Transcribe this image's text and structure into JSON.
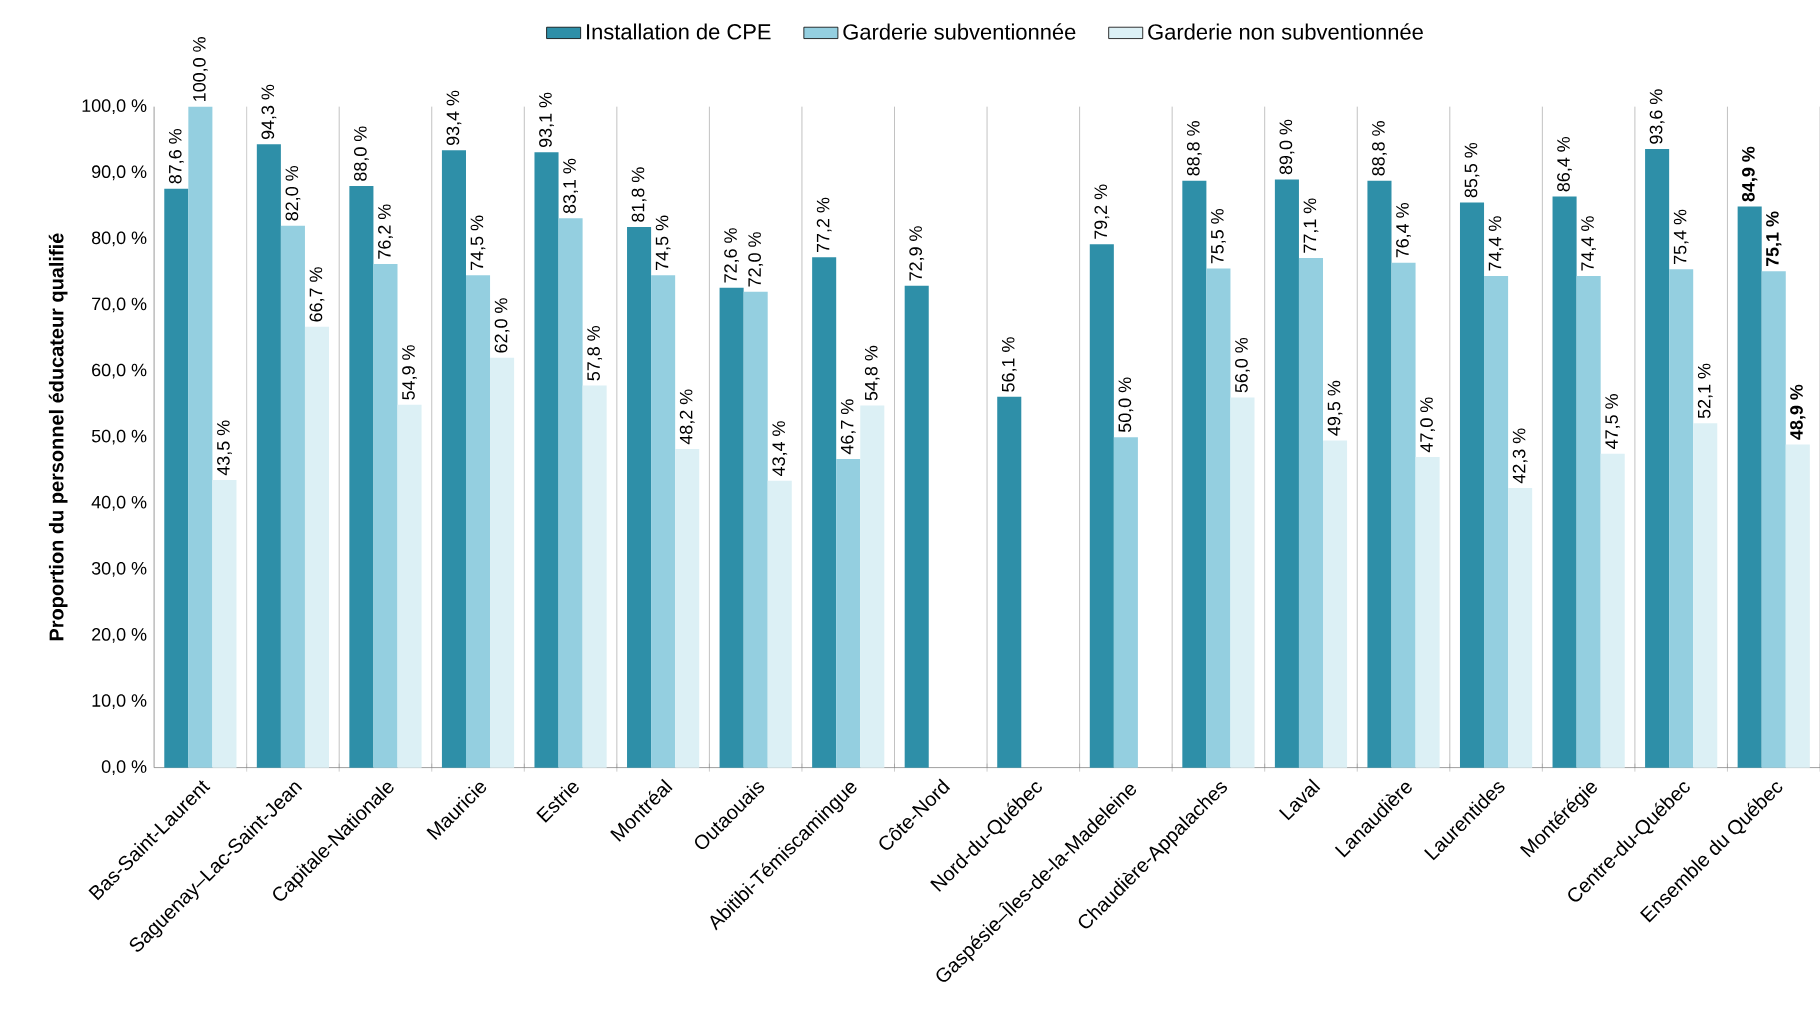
{
  "chart_data": {
    "type": "bar",
    "ylabel": "Proportion du personnel éducateur qualifié",
    "categories": [
      "Bas-Saint-Laurent",
      "Saguenay–Lac-Saint-Jean",
      "Capitale-Nationale",
      "Mauricie",
      "Estrie",
      "Montréal",
      "Outaouais",
      "Abitibi-Témiscamingue",
      "Côte-Nord",
      "Nord-du-Québec",
      "Gaspésie–Îles-de-la-Madeleine",
      "Chaudière-Appalaches",
      "Laval",
      "Lanaudière",
      "Laurentides",
      "Montérégie",
      "Centre-du-Québec",
      "Ensemble du Québec"
    ],
    "series": [
      {
        "name": "Installation de CPE",
        "color": "#2e8fa8",
        "values": [
          87.6,
          94.3,
          88.0,
          93.4,
          93.1,
          81.8,
          72.6,
          77.2,
          72.9,
          56.1,
          79.2,
          88.8,
          89.0,
          88.8,
          85.5,
          86.4,
          93.6,
          84.9
        ],
        "value_labels": [
          "87,6 %",
          "94,3 %",
          "88,0 %",
          "93,4 %",
          "93,1 %",
          "81,8 %",
          "72,6 %",
          "77,2 %",
          "72,9 %",
          "56,1 %",
          "79,2 %",
          "88,8 %",
          "89,0 %",
          "88,8 %",
          "85,5 %",
          "86,4 %",
          "93,6 %",
          "**84,9 %**"
        ]
      },
      {
        "name": "Garderie subventionnée",
        "color": "#94cfe0",
        "values": [
          100.0,
          82.0,
          76.2,
          74.5,
          83.1,
          74.5,
          72.0,
          46.7,
          null,
          null,
          50.0,
          75.5,
          77.1,
          76.4,
          74.4,
          74.4,
          75.4,
          75.1
        ],
        "value_labels": [
          "100,0 %",
          "82,0 %",
          "76,2 %",
          "74,5 %",
          "83,1 %",
          "74,5 %",
          "72,0 %",
          "46,7 %",
          null,
          null,
          "50,0 %",
          "75,5 %",
          "77,1 %",
          "76,4 %",
          "74,4 %",
          "74,4 %",
          "75,4 %",
          "**75,1 %**"
        ]
      },
      {
        "name": "Garderie non subventionnée",
        "color": "#dcf0f5",
        "values": [
          43.5,
          66.7,
          54.9,
          62.0,
          57.8,
          48.2,
          43.4,
          54.8,
          null,
          null,
          null,
          56.0,
          49.5,
          47.0,
          42.3,
          47.5,
          52.1,
          48.9
        ],
        "value_labels": [
          "43,5 %",
          "66,7 %",
          "54,9 %",
          "62,0 %",
          "57,8 %",
          "48,2 %",
          "43,4 %",
          "54,8 %",
          null,
          null,
          null,
          "56,0 %",
          "49,5 %",
          "47,0 %",
          "42,3 %",
          "47,5 %",
          "52,1 %",
          "**48,9 %**"
        ]
      }
    ],
    "ylim": [
      0,
      100
    ],
    "yticks": [
      {
        "value": 0,
        "label": "0,0 %"
      },
      {
        "value": 10,
        "label": "10,0 %"
      },
      {
        "value": 20,
        "label": "20,0 %"
      },
      {
        "value": 30,
        "label": "30,0 %"
      },
      {
        "value": 40,
        "label": "40,0 %"
      },
      {
        "value": 50,
        "label": "50,0 %"
      },
      {
        "value": 60,
        "label": "60,0 %"
      },
      {
        "value": 70,
        "label": "70,0 %"
      },
      {
        "value": 80,
        "label": "80,0 %"
      },
      {
        "value": 90,
        "label": "90,0 %"
      },
      {
        "value": 100,
        "label": "100,0 %"
      }
    ],
    "grid": "x",
    "legend": "top"
  }
}
